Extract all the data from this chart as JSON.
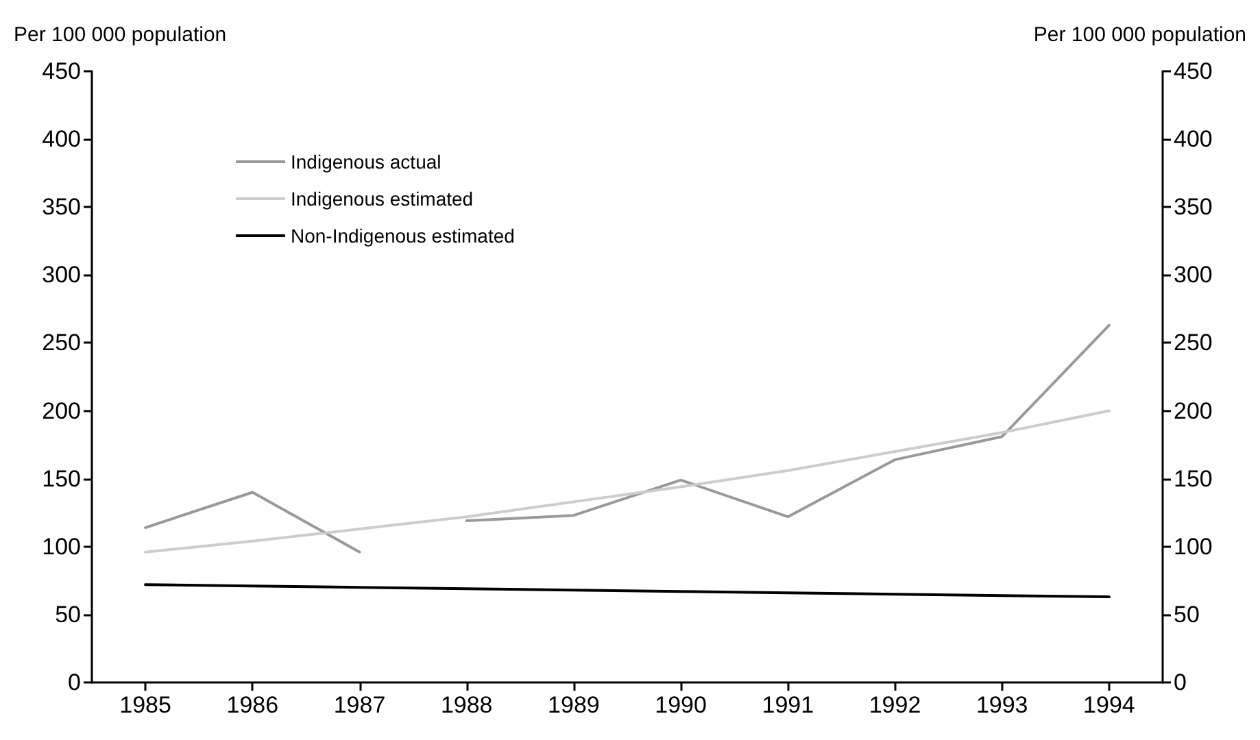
{
  "chart_data": {
    "type": "line",
    "ylabel": "Per 100 000 population",
    "y2label": "Per 100 000 population",
    "categories": [
      "1985",
      "1986",
      "1987",
      "1988",
      "1989",
      "1990",
      "1991",
      "1992",
      "1993",
      "1994"
    ],
    "series": [
      {
        "name": "Indigenous actual",
        "color": "#999999",
        "values": [
          114,
          140,
          96,
          null,
          null,
          null,
          null,
          null,
          null,
          null
        ]
      },
      {
        "color": "#999999",
        "values": [
          null,
          null,
          null,
          119,
          123,
          149,
          122,
          164,
          181,
          263
        ]
      },
      {
        "name": "Indigenous estimated",
        "color": "#cccccc",
        "values": [
          96,
          104,
          113,
          122,
          133,
          144,
          156,
          170,
          184,
          200
        ]
      },
      {
        "name": "Non-Indigenous estimated",
        "color": "#000000",
        "values": [
          72,
          71,
          70,
          69,
          68,
          67,
          66,
          65,
          64,
          63
        ]
      }
    ],
    "ylim": [
      0,
      450
    ],
    "yticks": [
      0,
      50,
      100,
      150,
      200,
      250,
      300,
      350,
      400,
      450
    ],
    "y2lim": [
      0,
      450
    ],
    "y2ticks": [
      0,
      50,
      100,
      150,
      200,
      250,
      300,
      350,
      400,
      450
    ],
    "grid": false,
    "legend": "top left",
    "marker": "none",
    "line_style": "solid"
  }
}
